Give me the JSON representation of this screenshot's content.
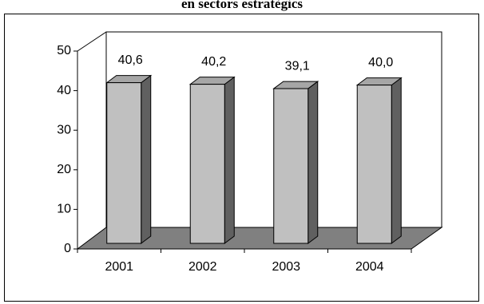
{
  "chart_data": {
    "type": "bar",
    "title": "en sectors estratègics",
    "categories": [
      "2001",
      "2002",
      "2003",
      "2004"
    ],
    "values": [
      40.6,
      40.2,
      39.1,
      40.0
    ],
    "value_labels": [
      "40,6",
      "40,2",
      "39,1",
      "40,0"
    ],
    "color": "#c0c0c0",
    "ylim": [
      0,
      50
    ],
    "yticks": [
      0,
      10,
      20,
      30,
      40,
      50
    ]
  }
}
